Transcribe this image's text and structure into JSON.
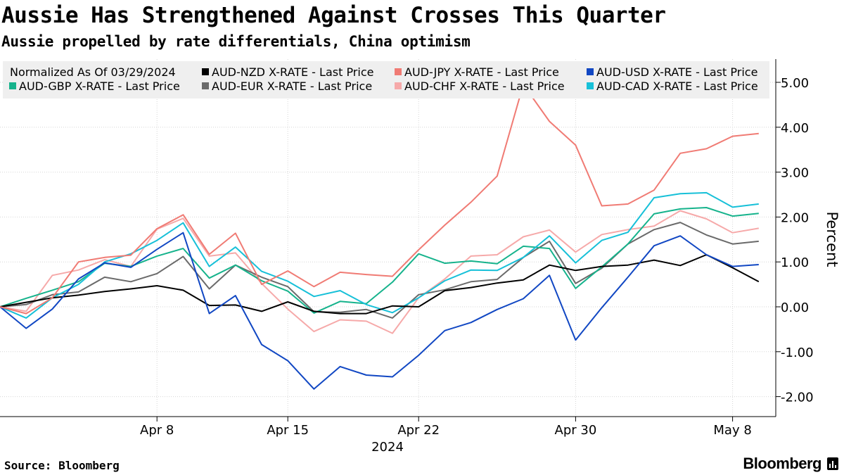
{
  "header": {
    "title": "Aussie Has Strengthened Against Crosses This Quarter",
    "subtitle": "Aussie propelled by rate differentials, China optimism"
  },
  "footer": {
    "source": "Source: Bloomberg",
    "brand": "Bloomberg"
  },
  "chart_data": {
    "type": "line",
    "title": "Aussie Has Strengthened Against Crosses This Quarter",
    "subtitle": "Aussie propelled by rate differentials, China optimism",
    "xlabel": "2024",
    "ylabel": "Percent",
    "ylim": [
      -2.5,
      5.6
    ],
    "yticks": [
      -2,
      -1,
      0,
      1,
      2,
      3,
      4,
      5
    ],
    "ytick_labels": [
      "-2.00",
      "-1.00",
      "0.00",
      "1.00",
      "2.00",
      "3.00",
      "4.00",
      "5.00"
    ],
    "grid": true,
    "legend_position": "top",
    "legend_note": "Normalized As Of 03/29/2024",
    "xticks": [
      {
        "label": "Apr 8",
        "index": 6
      },
      {
        "label": "Apr 15",
        "index": 11
      },
      {
        "label": "Apr 22",
        "index": 16
      },
      {
        "label": "Apr 30",
        "index": 22
      },
      {
        "label": "May 8",
        "index": 28
      }
    ],
    "x_year_label": "2024",
    "x": [
      "Mar 29",
      "Apr 1",
      "Apr 2",
      "Apr 3",
      "Apr 4",
      "Apr 5",
      "Apr 8",
      "Apr 9",
      "Apr 10",
      "Apr 11",
      "Apr 12",
      "Apr 15",
      "Apr 16",
      "Apr 17",
      "Apr 18",
      "Apr 19",
      "Apr 22",
      "Apr 23",
      "Apr 24",
      "Apr 25",
      "Apr 26",
      "Apr 29",
      "Apr 30",
      "May 1",
      "May 2",
      "May 3",
      "May 6",
      "May 7",
      "May 8",
      "May 9"
    ],
    "series": [
      {
        "name": "AUD-NZD X-RATE - Last Price",
        "color": "#000000",
        "values": [
          0.0,
          0.1,
          0.2,
          0.26,
          0.34,
          0.4,
          0.47,
          0.37,
          0.03,
          0.04,
          -0.1,
          0.11,
          -0.1,
          -0.15,
          -0.15,
          0.02,
          0.0,
          0.36,
          0.43,
          0.53,
          0.6,
          0.93,
          0.81,
          0.9,
          0.93,
          1.04,
          0.92,
          1.16,
          0.87,
          0.56
        ]
      },
      {
        "name": "AUD-JPY X-RATE - Last Price",
        "color": "#f07b74",
        "values": [
          0.0,
          -0.15,
          0.2,
          1.0,
          1.1,
          1.15,
          1.74,
          2.05,
          1.17,
          1.64,
          0.5,
          0.8,
          0.45,
          0.77,
          0.72,
          0.68,
          1.27,
          1.82,
          2.33,
          2.91,
          4.95,
          4.13,
          3.6,
          2.25,
          2.29,
          2.6,
          3.42,
          3.52,
          3.8,
          3.86
        ]
      },
      {
        "name": "AUD-USD X-RATE - Last Price",
        "color": "#1147c3",
        "values": [
          0.0,
          -0.48,
          -0.05,
          0.62,
          0.98,
          0.88,
          1.28,
          1.65,
          -0.15,
          0.25,
          -0.84,
          -1.2,
          -1.83,
          -1.33,
          -1.52,
          -1.56,
          -1.08,
          -0.53,
          -0.35,
          -0.06,
          0.18,
          0.7,
          -0.74,
          -0.02,
          0.66,
          1.36,
          1.58,
          1.16,
          0.9,
          0.94
        ]
      },
      {
        "name": "AUD-GBP X-RATE - Last Price",
        "color": "#16b38c",
        "values": [
          0.0,
          0.19,
          0.37,
          0.56,
          0.97,
          0.9,
          1.13,
          1.3,
          0.64,
          0.93,
          0.58,
          0.35,
          -0.14,
          0.12,
          0.07,
          0.55,
          1.18,
          0.97,
          1.02,
          0.96,
          1.35,
          1.3,
          0.41,
          0.89,
          1.4,
          2.07,
          2.18,
          2.21,
          2.02,
          2.08
        ]
      },
      {
        "name": "AUD-EUR X-RATE - Last Price",
        "color": "#6a6a6a",
        "values": [
          0.0,
          0.05,
          0.27,
          0.33,
          0.66,
          0.56,
          0.74,
          1.12,
          0.4,
          0.93,
          0.66,
          0.45,
          -0.11,
          -0.12,
          -0.06,
          -0.25,
          0.27,
          0.38,
          0.56,
          0.61,
          1.1,
          1.46,
          0.52,
          0.86,
          1.4,
          1.72,
          1.88,
          1.6,
          1.4,
          1.46
        ]
      },
      {
        "name": "AUD-CHF X-RATE - Last Price",
        "color": "#f6a9a9",
        "values": [
          0.0,
          -0.1,
          0.7,
          0.82,
          1.05,
          0.9,
          1.73,
          1.97,
          1.13,
          1.2,
          0.52,
          -0.05,
          -0.55,
          -0.29,
          -0.32,
          -0.59,
          0.2,
          0.62,
          1.13,
          1.16,
          1.56,
          1.71,
          1.22,
          1.61,
          1.72,
          1.8,
          2.14,
          1.96,
          1.65,
          1.75
        ]
      },
      {
        "name": "AUD-CAD X-RATE - Last Price",
        "color": "#17c0d8",
        "values": [
          0.0,
          -0.25,
          0.2,
          0.5,
          1.0,
          1.18,
          1.48,
          1.87,
          0.9,
          1.33,
          0.79,
          0.57,
          0.23,
          0.36,
          0.05,
          -0.13,
          0.2,
          0.58,
          0.82,
          0.81,
          1.1,
          1.58,
          0.98,
          1.48,
          1.66,
          2.43,
          2.52,
          2.54,
          2.22,
          2.29
        ]
      }
    ]
  }
}
